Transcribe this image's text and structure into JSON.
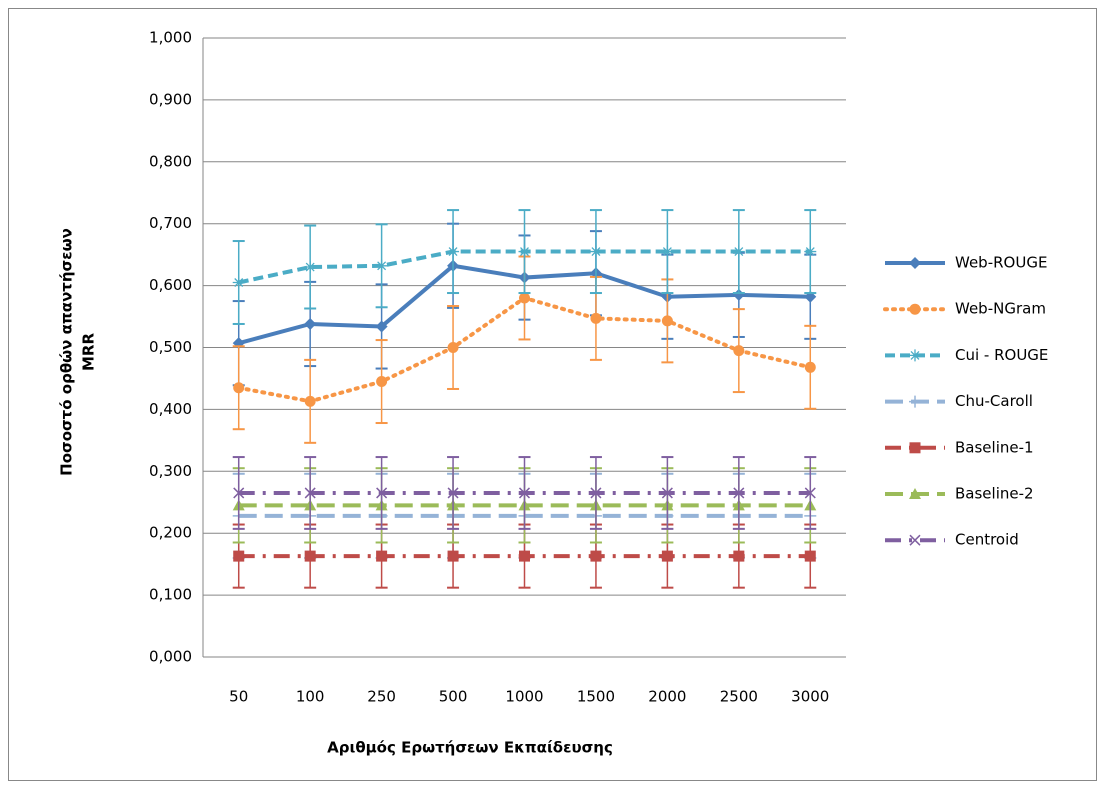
{
  "chart_data": {
    "type": "line",
    "x_label": "Αριθμός Ερωτήσεων Εκπαίδευσης",
    "y_label_lines": [
      "Ποσοστό ορθών απαντήσεων",
      "MRR"
    ],
    "categories": [
      "50",
      "100",
      "250",
      "500",
      "1000",
      "1500",
      "2000",
      "2500",
      "3000"
    ],
    "ylim": [
      0,
      1
    ],
    "yticks": [
      {
        "value": 0,
        "label": "0,000"
      },
      {
        "value": 0.1,
        "label": "0,100"
      },
      {
        "value": 0.2,
        "label": "0,200"
      },
      {
        "value": 0.3,
        "label": "0,300"
      },
      {
        "value": 0.4,
        "label": "0,400"
      },
      {
        "value": 0.5,
        "label": "0,500"
      },
      {
        "value": 0.6,
        "label": "0,600"
      },
      {
        "value": 0.7,
        "label": "0,700"
      },
      {
        "value": 0.8,
        "label": "0,800"
      },
      {
        "value": 0.9,
        "label": "0,900"
      },
      {
        "value": 1,
        "label": "1,000"
      }
    ],
    "grid": true,
    "legend": "right",
    "series": [
      {
        "name": "Web-ROUGE",
        "color": "#4a7ebb",
        "line_style": "solid",
        "marker": "diamond",
        "error": 0.068,
        "values": [
          0.507,
          0.538,
          0.534,
          0.632,
          0.613,
          0.62,
          0.582,
          0.585,
          0.582
        ]
      },
      {
        "name": "Web-NGram",
        "color": "#f79646",
        "line_style": "dotted",
        "marker": "circle",
        "error": 0.067,
        "values": [
          0.435,
          0.413,
          0.445,
          0.5,
          0.58,
          0.547,
          0.543,
          0.495,
          0.468
        ]
      },
      {
        "name": "Cui - ROUGE",
        "color": "#4bacc6",
        "line_style": "dashed",
        "marker": "star",
        "error": 0.067,
        "values": [
          0.605,
          0.63,
          0.632,
          0.655,
          0.655,
          0.655,
          0.655,
          0.655,
          0.655
        ]
      },
      {
        "name": "Chu-Caroll",
        "color": "#95b3d7",
        "line_style": "longdash",
        "marker": "plus",
        "error": 0.068,
        "values": [
          0.228,
          0.228,
          0.228,
          0.228,
          0.228,
          0.228,
          0.228,
          0.228,
          0.228
        ]
      },
      {
        "name": "Baseline-1",
        "color": "#be4b48",
        "line_style": "dashdot",
        "marker": "square",
        "error": 0.051,
        "values": [
          0.163,
          0.163,
          0.163,
          0.163,
          0.163,
          0.163,
          0.163,
          0.163,
          0.163
        ]
      },
      {
        "name": "Baseline-2",
        "color": "#9bbb59",
        "line_style": "longdash",
        "marker": "triangle",
        "error": 0.06,
        "values": [
          0.245,
          0.245,
          0.245,
          0.245,
          0.245,
          0.245,
          0.245,
          0.245,
          0.245
        ]
      },
      {
        "name": "Centroid",
        "color": "#7f5fa0",
        "line_style": "dashdot",
        "marker": "x",
        "error": 0.058,
        "values": [
          0.265,
          0.265,
          0.265,
          0.265,
          0.265,
          0.265,
          0.265,
          0.265,
          0.265
        ]
      }
    ]
  }
}
